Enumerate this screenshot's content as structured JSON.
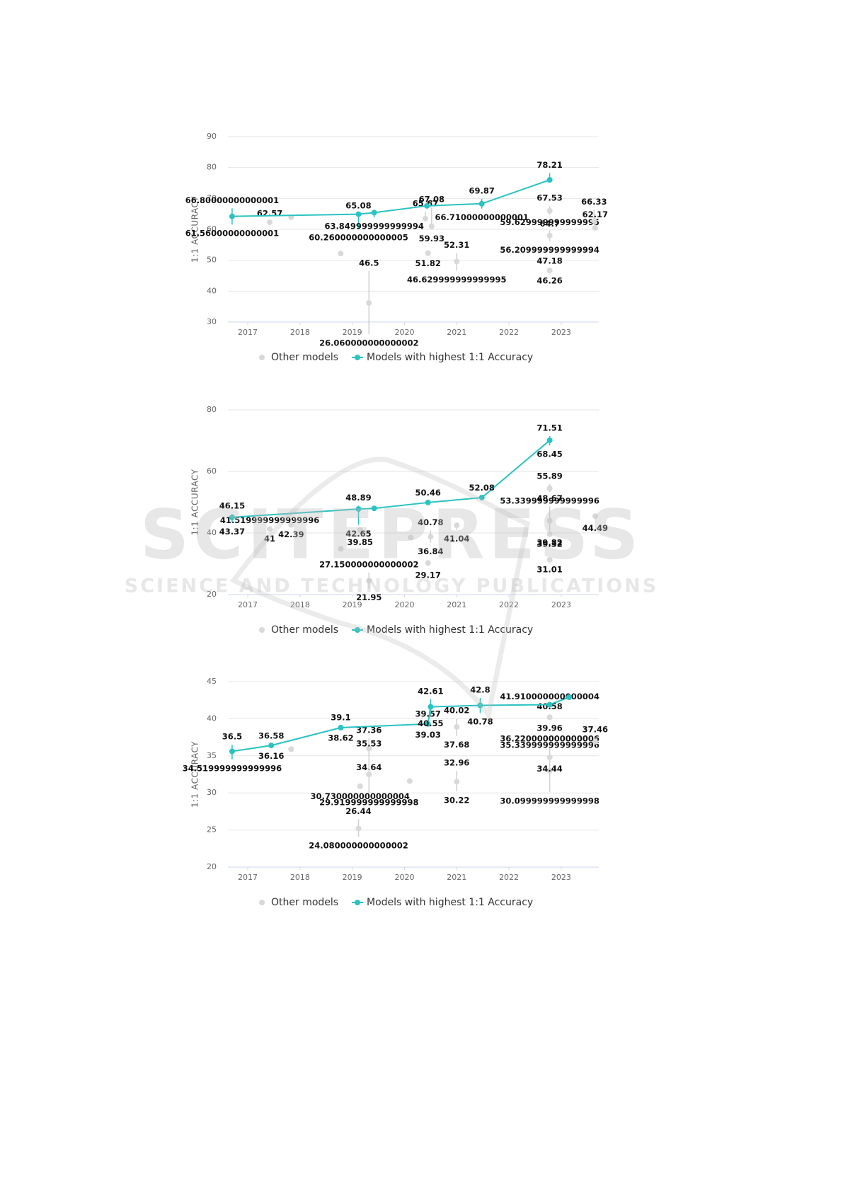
{
  "watermark": {
    "title": "SCITEPRESS",
    "subtitle": "SCIENCE AND TECHNOLOGY PUBLICATIONS"
  },
  "chart_data": [
    {
      "type": "line",
      "ylabel": "1:1 ACCURACY",
      "xlim": [
        2016.62,
        2023.72
      ],
      "xticks": [
        2017,
        2018,
        2019,
        2020,
        2021,
        2022,
        2023
      ],
      "ylim": [
        30,
        90
      ],
      "yticks": [
        30,
        40,
        50,
        60,
        70,
        80,
        90
      ],
      "grid": true,
      "legend": "bottom",
      "series": [
        {
          "name": "Other models",
          "color": "#d9d9d9",
          "line": false,
          "x": [
            2017.42,
            2017.83,
            2018.78,
            2019.32,
            2020.4,
            2020.45,
            2020.52,
            2021.0,
            2022.78,
            2022.78,
            2022.78,
            2023.63,
            2023.65
          ],
          "values": [
            62.3,
            63.9,
            52.2,
            36.2,
            63.5,
            52.3,
            61.0,
            49.6,
            66.0,
            58.0,
            46.7,
            62.7,
            60.5
          ],
          "upper": [
            62.57,
            null,
            null,
            46.5,
            65.67,
            null,
            67.08,
            52.31,
            67.53,
            59.629999999999995,
            47.18,
            66.33,
            62.17
          ],
          "lower": [
            null,
            null,
            null,
            26.060000000000002,
            null,
            51.82,
            59.93,
            46.629999999999995,
            64.7,
            56.209999999999994,
            46.26,
            null,
            null
          ]
        },
        {
          "name": "Models with highest 1:1 Accuracy",
          "color": "#2bc2c2",
          "line": true,
          "x": [
            2016.7,
            2019.12,
            2019.42,
            2020.43,
            2021.48,
            2022.78
          ],
          "values": [
            64.2,
            64.9,
            65.4,
            67.6,
            68.3,
            76.0
          ],
          "upper": [
            66.80000000000001,
            65.08,
            null,
            null,
            69.87,
            78.21
          ],
          "lower": [
            61.56000000000001,
            60.260000000000005,
            63.849999999999994,
            null,
            66.71000000000001,
            null
          ]
        }
      ]
    },
    {
      "type": "line",
      "ylabel": "1:1 ACCURACY",
      "xlim": [
        2016.62,
        2023.72
      ],
      "xticks": [
        2017,
        2018,
        2019,
        2020,
        2021,
        2022,
        2023
      ],
      "ylim": [
        20,
        80
      ],
      "yticks": [
        20,
        40,
        60,
        80
      ],
      "grid": true,
      "legend": "bottom",
      "series": [
        {
          "name": "Other models",
          "color": "#d9d9d9",
          "line": false,
          "x": [
            2017.42,
            2017.83,
            2018.78,
            2019.15,
            2019.32,
            2020.12,
            2020.5,
            2020.45,
            2021.0,
            2022.78,
            2022.78,
            2022.78,
            2022.78,
            2023.65
          ],
          "values": [
            41.3,
            42.6,
            34.9,
            41.0,
            24.5,
            38.5,
            38.8,
            30.3,
            42.5,
            54.5,
            44.0,
            39.6,
            31.3,
            45.5
          ],
          "upper": [
            41.519999999999996,
            null,
            null,
            null,
            27.150000000000002,
            null,
            40.78,
            null,
            null,
            55.89,
            48.67,
            null,
            null,
            null
          ],
          "lower": [
            41,
            42.39,
            null,
            39.85,
            21.95,
            null,
            36.84,
            29.17,
            41.04,
            53.339999999999996,
            39.82,
            39.32,
            31.01,
            44.49
          ]
        },
        {
          "name": "Models with highest 1:1 Accuracy",
          "color": "#2bc2c2",
          "line": true,
          "x": [
            2016.7,
            2019.12,
            2019.42,
            2020.45,
            2021.48,
            2022.78
          ],
          "values": [
            45.1,
            47.8,
            48.0,
            49.9,
            51.5,
            70.1
          ],
          "upper": [
            46.15,
            48.89,
            null,
            50.46,
            52.08,
            71.51
          ],
          "lower": [
            43.37,
            42.65,
            null,
            null,
            null,
            68.45
          ]
        }
      ]
    },
    {
      "type": "line",
      "ylabel": "1:1 ACCURACY",
      "xlim": [
        2016.62,
        2023.72
      ],
      "xticks": [
        2017,
        2018,
        2019,
        2020,
        2021,
        2022,
        2023
      ],
      "ylim": [
        20,
        45
      ],
      "yticks": [
        20,
        25,
        30,
        35,
        40,
        45
      ],
      "grid": true,
      "legend": "bottom",
      "series": [
        {
          "name": "Other models",
          "color": "#d9d9d9",
          "line": false,
          "x": [
            2017.83,
            2019.12,
            2019.32,
            2019.32,
            2019.15,
            2020.1,
            2021.0,
            2021.0,
            2022.78,
            2022.78,
            2022.78,
            2023.65
          ],
          "values": [
            35.9,
            25.2,
            36.0,
            32.5,
            30.9,
            31.6,
            38.9,
            31.5,
            40.2,
            33.0,
            34.8,
            36.9
          ],
          "upper": [
            null,
            26.44,
            37.36,
            35.53,
            null,
            null,
            40.02,
            32.96,
            40.58,
            36.220000000000006,
            35.339999999999996,
            37.46
          ],
          "lower": [
            null,
            24.080000000000002,
            34.64,
            29.919999999999998,
            30.730000000000004,
            null,
            37.68,
            30.22,
            39.96,
            30.099999999999998,
            34.44,
            null
          ]
        },
        {
          "name": "Models with highest 1:1 Accuracy",
          "color": "#2bc2c2",
          "line": true,
          "x": [
            2016.7,
            2017.45,
            2018.78,
            2020.45,
            2020.5,
            2021.45,
            2022.78,
            2023.15
          ],
          "values": [
            35.6,
            36.4,
            38.8,
            39.3,
            41.6,
            41.8,
            41.9,
            42.9
          ],
          "upper": [
            36.5,
            36.58,
            39.1,
            39.57,
            42.61,
            42.8,
            41.910000000000004,
            null
          ],
          "lower": [
            34.519999999999996,
            36.16,
            38.62,
            39.03,
            40.55,
            40.78,
            null,
            null
          ]
        }
      ]
    }
  ]
}
